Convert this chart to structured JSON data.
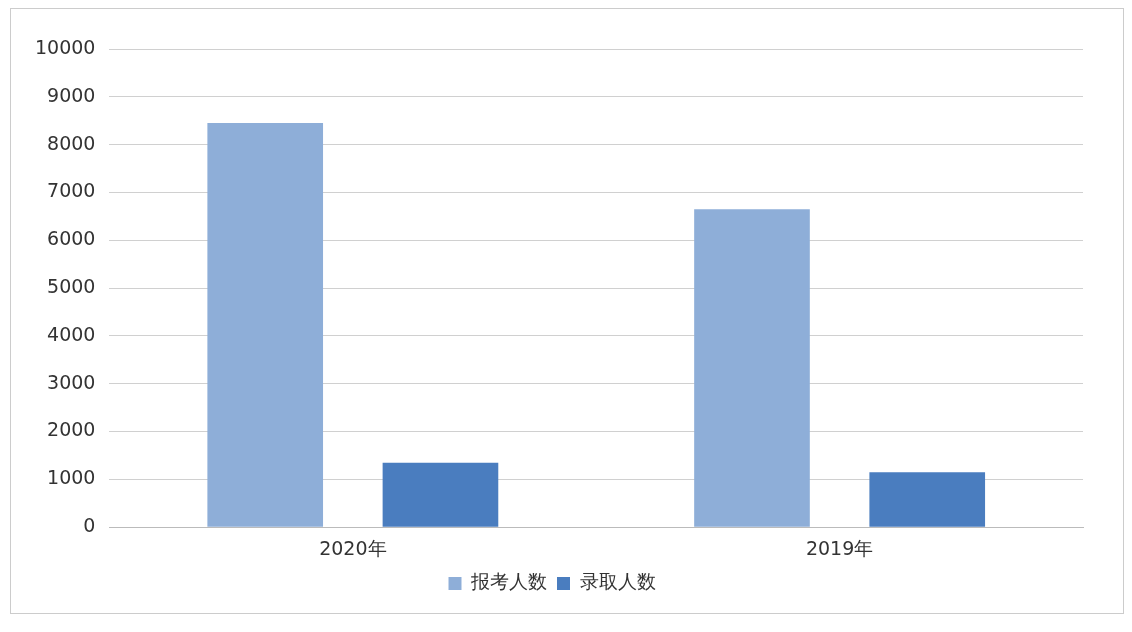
{
  "chart_data": {
    "type": "bar",
    "categories": [
      "2020年",
      "2019年"
    ],
    "series": [
      {
        "name": "报考人数",
        "color": "#8eaed8",
        "values": [
          8450,
          6650
        ]
      },
      {
        "name": "录取人数",
        "color": "#4a7dbf",
        "values": [
          1350,
          1150
        ]
      }
    ],
    "ylim": [
      0,
      10000
    ],
    "yticks": [
      0,
      1000,
      2000,
      3000,
      4000,
      5000,
      6000,
      7000,
      8000,
      9000,
      10000
    ],
    "grid": "y",
    "legend": "bottom"
  }
}
